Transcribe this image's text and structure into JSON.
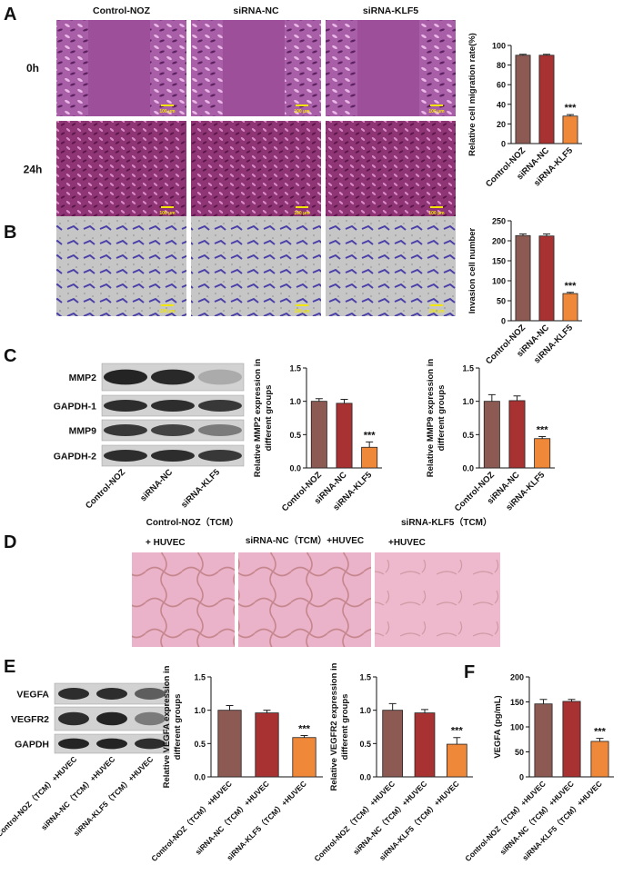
{
  "panel_letters": [
    "A",
    "B",
    "C",
    "D",
    "E",
    "F"
  ],
  "scale_bar": "100 μm",
  "panel_a": {
    "columns": [
      "Control-NOZ",
      "siRNA-NC",
      "siRNA-KLF5"
    ],
    "rows": [
      "0h",
      "24h"
    ]
  },
  "panel_b": {
    "columns": [
      "Control-NOZ",
      "siRNA-NC",
      "siRNA-KLF5"
    ]
  },
  "panel_c": {
    "blot_rows": [
      "MMP2",
      "GAPDH-1",
      "MMP9",
      "GAPDH-2"
    ],
    "lanes": [
      "Control-NOZ",
      "siRNA-NC",
      "siRNA-KLF5"
    ]
  },
  "panel_d": {
    "columns": [
      [
        "Control-NOZ（TCM）",
        "+ HUVEC"
      ],
      [
        "siRNA-NC（TCM）+HUVEC"
      ],
      [
        "siRNA-KLF5（TCM）",
        "+HUVEC"
      ]
    ]
  },
  "panel_e": {
    "blot_rows": [
      "VEGFA",
      "VEGFR2",
      "GAPDH"
    ],
    "lanes": [
      "Control-NOZ（TCM）+HUVEC",
      "siRNA-NC（TCM）+HUVEC",
      "siRNA-KLF5（TCM）+HUVEC"
    ]
  },
  "chart_data": [
    {
      "type": "bar",
      "y_label": [
        "Relative cell migration rate(%)"
      ],
      "categories": [
        "Control-NOZ",
        "siRNA-NC",
        "siRNA-KLF5"
      ],
      "values": [
        90,
        90,
        28
      ],
      "errors": [
        1,
        1,
        1.5
      ],
      "value_annotations": [
        null,
        null,
        "***"
      ],
      "colors": [
        "#8c5a53",
        "#a83232",
        "#f0883a"
      ],
      "ylim": [
        0,
        100
      ],
      "yticks": [
        0,
        20,
        40,
        60,
        80,
        100
      ]
    },
    {
      "type": "bar",
      "y_label": [
        "Invasion cell number"
      ],
      "categories": [
        "Control-NOZ",
        "siRNA-NC",
        "siRNA-KLF5"
      ],
      "values": [
        213,
        212,
        68
      ],
      "errors": [
        4,
        5,
        3
      ],
      "value_annotations": [
        null,
        null,
        "***"
      ],
      "colors": [
        "#8c5a53",
        "#a83232",
        "#f0883a"
      ],
      "ylim": [
        0,
        250
      ],
      "yticks": [
        0,
        50,
        100,
        150,
        200,
        250
      ]
    },
    {
      "type": "bar",
      "y_label": [
        "Relative MMP2 expression in",
        "different groups"
      ],
      "categories": [
        "Control-NOZ",
        "siRNA-NC",
        "siRNA-KLF5"
      ],
      "values": [
        1.0,
        0.97,
        0.31
      ],
      "errors": [
        0.04,
        0.06,
        0.08
      ],
      "value_annotations": [
        null,
        null,
        "***"
      ],
      "colors": [
        "#8c5a53",
        "#a83232",
        "#f0883a"
      ],
      "ylim": [
        0,
        1.5
      ],
      "yticks": [
        {
          "value": 0,
          "label": "0.0"
        },
        0.5,
        {
          "value": 1,
          "label": "1.0"
        },
        1.5
      ]
    },
    {
      "type": "bar",
      "y_label": [
        "Relative MMP9 expression in",
        "different groups"
      ],
      "categories": [
        "Control-NOZ",
        "siRNA-NC",
        "siRNA-KLF5"
      ],
      "values": [
        1.0,
        1.01,
        0.44
      ],
      "errors": [
        0.1,
        0.07,
        0.03
      ],
      "value_annotations": [
        null,
        null,
        "***"
      ],
      "colors": [
        "#8c5a53",
        "#a83232",
        "#f0883a"
      ],
      "ylim": [
        0,
        1.5
      ],
      "yticks": [
        {
          "value": 0,
          "label": "0.0"
        },
        0.5,
        {
          "value": 1,
          "label": "1.0"
        },
        1.5
      ]
    },
    {
      "type": "bar",
      "y_label": [
        "Relative VEGFA expression in",
        "different groups"
      ],
      "categories": [
        "Control-NOZ（TCM）+HUVEC",
        "siRNA-NC（TCM）+HUVEC",
        "siRNA-KLF5（TCM）+HUVEC"
      ],
      "values": [
        1.0,
        0.96,
        0.59
      ],
      "errors": [
        0.07,
        0.04,
        0.03
      ],
      "value_annotations": [
        null,
        null,
        "***"
      ],
      "colors": [
        "#8c5a53",
        "#a83232",
        "#f0883a"
      ],
      "ylim": [
        0,
        1.5
      ],
      "yticks": [
        {
          "value": 0,
          "label": "0.0"
        },
        0.5,
        {
          "value": 1,
          "label": "1.0"
        },
        1.5
      ]
    },
    {
      "type": "bar",
      "y_label": [
        "Relative VEGFR2 expression in",
        "different groups"
      ],
      "categories": [
        "Control-NOZ（TCM）+HUVEC",
        "siRNA-NC（TCM）+HUVEC",
        "siRNA-KLF5（TCM）+HUVEC"
      ],
      "values": [
        1.0,
        0.96,
        0.49
      ],
      "errors": [
        0.1,
        0.05,
        0.1
      ],
      "value_annotations": [
        null,
        null,
        "***"
      ],
      "colors": [
        "#8c5a53",
        "#a83232",
        "#f0883a"
      ],
      "ylim": [
        0,
        1.5
      ],
      "yticks": [
        {
          "value": 0,
          "label": "0.0"
        },
        0.5,
        {
          "value": 1,
          "label": "1.0"
        },
        1.5
      ]
    },
    {
      "type": "bar",
      "y_label": [
        "VEGFA (pg/mL)"
      ],
      "categories": [
        "Control-NOZ（TCM）+HUVEC",
        "siRNA-NC（TCM）+HUVEC",
        "siRNA-KLF5（TCM）+HUVEC"
      ],
      "values": [
        146,
        151,
        71
      ],
      "errors": [
        9,
        4,
        6
      ],
      "value_annotations": [
        null,
        null,
        "***"
      ],
      "colors": [
        "#8c5a53",
        "#a83232",
        "#f0883a"
      ],
      "ylim": [
        0,
        200
      ],
      "yticks": [
        0,
        50,
        100,
        150,
        200
      ]
    }
  ]
}
